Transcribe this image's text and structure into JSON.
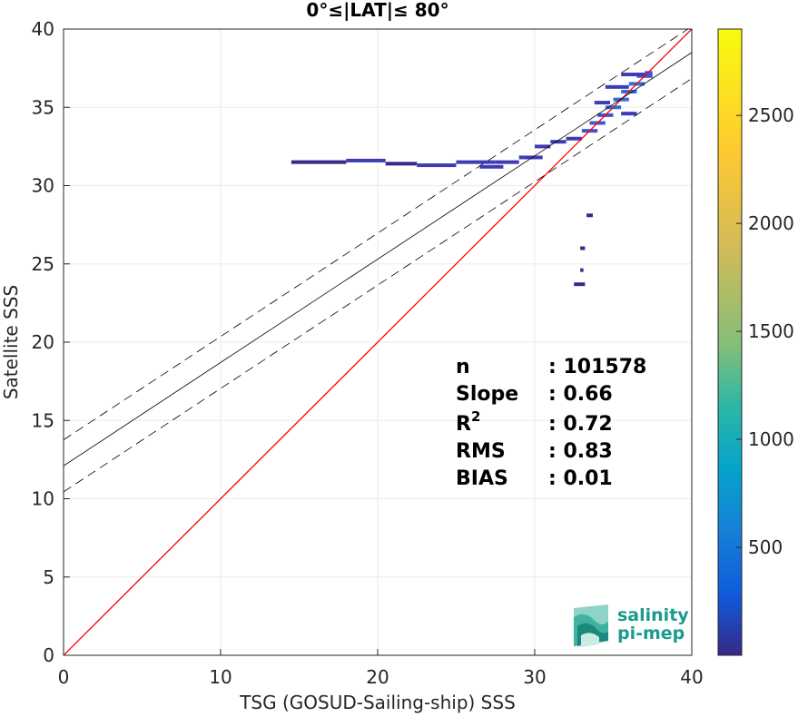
{
  "chart_data": {
    "type": "heatmap",
    "title": "0°≤|LAT|≤ 80°",
    "xlabel": "TSG (GOSUD-Sailing-ship) SSS",
    "ylabel": "Satellite SSS",
    "xlim": [
      0,
      40
    ],
    "ylim": [
      0,
      40
    ],
    "xticks": [
      0,
      10,
      20,
      30,
      40
    ],
    "yticks": [
      0,
      5,
      10,
      15,
      20,
      25,
      30,
      35,
      40
    ],
    "grid": true,
    "one_to_one_line": {
      "color": "#ff0000",
      "points": [
        [
          0,
          0
        ],
        [
          40,
          40
        ]
      ]
    },
    "regression_line": {
      "color": "#000000",
      "intercept": 12.1,
      "slope": 0.66
    },
    "regression_bounds": {
      "style": "dashed",
      "offset": 1.66
    },
    "colorbar": {
      "min": 0,
      "max": 2900,
      "ticks": [
        500,
        1000,
        1500,
        2000,
        2500
      ],
      "colormap": "parula"
    },
    "stats": [
      {
        "label": "n",
        "sep": ": ",
        "value": "101578"
      },
      {
        "label": "Slope",
        "sep": ": ",
        "value": "0.66"
      },
      {
        "label": "R",
        "sup": "2",
        "sep": ": ",
        "value": "0.72"
      },
      {
        "label": "RMS",
        "sep": ": ",
        "value": "0.83"
      },
      {
        "label": "BIAS",
        "sep": ": ",
        "value": "0.01"
      }
    ],
    "density_cells": [
      {
        "x": 14.5,
        "y": 31.5,
        "w": 3.5,
        "count": 60
      },
      {
        "x": 18.0,
        "y": 31.6,
        "w": 2.5,
        "count": 80
      },
      {
        "x": 20.5,
        "y": 31.4,
        "w": 2.0,
        "count": 60
      },
      {
        "x": 22.5,
        "y": 31.3,
        "w": 2.5,
        "count": 70
      },
      {
        "x": 25.0,
        "y": 31.5,
        "w": 2.5,
        "count": 100
      },
      {
        "x": 26.5,
        "y": 31.2,
        "w": 1.5,
        "count": 80
      },
      {
        "x": 27.5,
        "y": 31.5,
        "w": 1.5,
        "count": 90
      },
      {
        "x": 29.0,
        "y": 31.8,
        "w": 1.5,
        "count": 90
      },
      {
        "x": 30.0,
        "y": 32.5,
        "w": 1.0,
        "count": 100
      },
      {
        "x": 31.0,
        "y": 32.8,
        "w": 1.0,
        "count": 110
      },
      {
        "x": 32.0,
        "y": 33.0,
        "w": 1.0,
        "count": 150
      },
      {
        "x": 33.0,
        "y": 33.5,
        "w": 1.0,
        "count": 200
      },
      {
        "x": 33.5,
        "y": 34.0,
        "w": 1.0,
        "count": 260
      },
      {
        "x": 34.0,
        "y": 34.5,
        "w": 1.0,
        "count": 320
      },
      {
        "x": 34.5,
        "y": 35.0,
        "w": 1.0,
        "count": 380
      },
      {
        "x": 35.0,
        "y": 35.5,
        "w": 1.0,
        "count": 420
      },
      {
        "x": 35.5,
        "y": 36.0,
        "w": 1.0,
        "count": 460
      },
      {
        "x": 36.0,
        "y": 36.5,
        "w": 1.0,
        "count": 420
      },
      {
        "x": 36.5,
        "y": 37.0,
        "w": 1.0,
        "count": 320
      },
      {
        "x": 37.0,
        "y": 37.2,
        "w": 0.5,
        "count": 200
      },
      {
        "x": 34.5,
        "y": 36.3,
        "w": 1.5,
        "count": 150
      },
      {
        "x": 35.5,
        "y": 37.1,
        "w": 1.5,
        "count": 130
      },
      {
        "x": 33.8,
        "y": 35.3,
        "w": 1.0,
        "count": 160
      },
      {
        "x": 35.5,
        "y": 34.6,
        "w": 1.0,
        "count": 140
      },
      {
        "x": 33.3,
        "y": 28.1,
        "w": 0.4,
        "count": 40
      },
      {
        "x": 32.9,
        "y": 26.0,
        "w": 0.3,
        "count": 40
      },
      {
        "x": 32.9,
        "y": 24.6,
        "w": 0.2,
        "count": 30
      },
      {
        "x": 32.5,
        "y": 23.7,
        "w": 0.7,
        "count": 40
      }
    ]
  },
  "logo": {
    "line1": "salinity",
    "line2": "pi-mep"
  },
  "colors": {
    "grid": "#ebebeb",
    "axis": "#262626",
    "one_to_one": "#ff0000",
    "regression": "#000000"
  }
}
